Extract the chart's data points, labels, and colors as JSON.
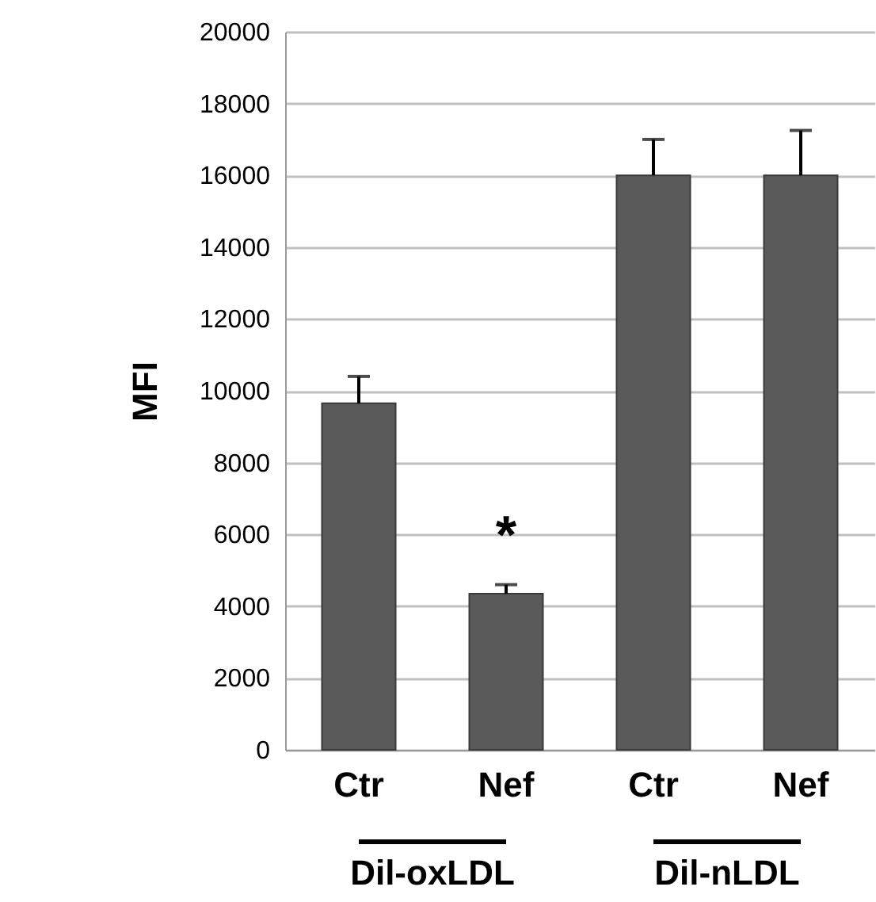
{
  "chart_data": {
    "type": "bar",
    "ylabel": "MFI",
    "categories": [
      "Ctr",
      "Nef",
      "Ctr",
      "Nef"
    ],
    "values": [
      9650,
      4350,
      16000,
      16000
    ],
    "errors": [
      [
        9650,
        10400
      ],
      [
        4350,
        4600
      ],
      [
        16000,
        17000
      ],
      [
        16000,
        17250
      ]
    ],
    "color": "#5a5a5a",
    "ylim": [
      0,
      20000
    ],
    "yticks": [
      0,
      2000,
      4000,
      6000,
      8000,
      10000,
      12000,
      14000,
      16000,
      18000,
      20000
    ],
    "grid": "y",
    "annotations": [
      "*",
      "Dil-oxLDL",
      "Dil-nLDL"
    ]
  }
}
